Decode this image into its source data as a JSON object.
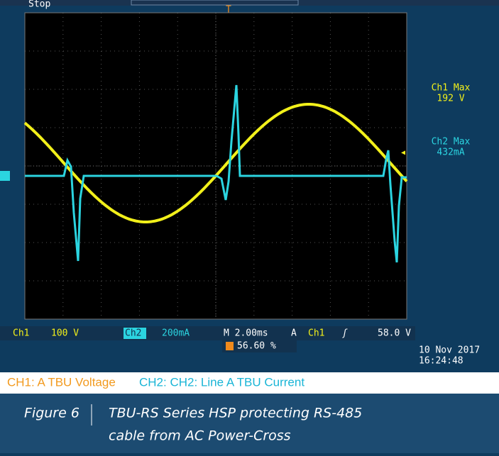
{
  "scope": {
    "status": "Stop",
    "readouts": {
      "ch1_max_label": "Ch1 Max",
      "ch1_max": "192 V",
      "ch2_max_label": "Ch2 Max",
      "ch2_max": "432mA"
    },
    "bottom_bar": {
      "ch1": "Ch1",
      "ch1_scale": "100 V",
      "ch2": "Ch2",
      "ch2_scale": "200mA",
      "timebase": "M 2.00ms",
      "trigger_mode": "A",
      "trigger_source": "Ch1",
      "trigger_level": "58.0 V"
    },
    "trigger_position": "56.60 %",
    "date": "10 Nov 2017",
    "time": "16:24:48"
  },
  "legend": {
    "ch1": "CH1: A TBU Voltage",
    "ch2": "CH2: CH2: Line A TBU Current"
  },
  "caption": {
    "label": "Figure 6",
    "text_line1": "TBU-RS Series HSP protecting RS-485",
    "text_line2": "cable from AC Power-Cross"
  }
}
